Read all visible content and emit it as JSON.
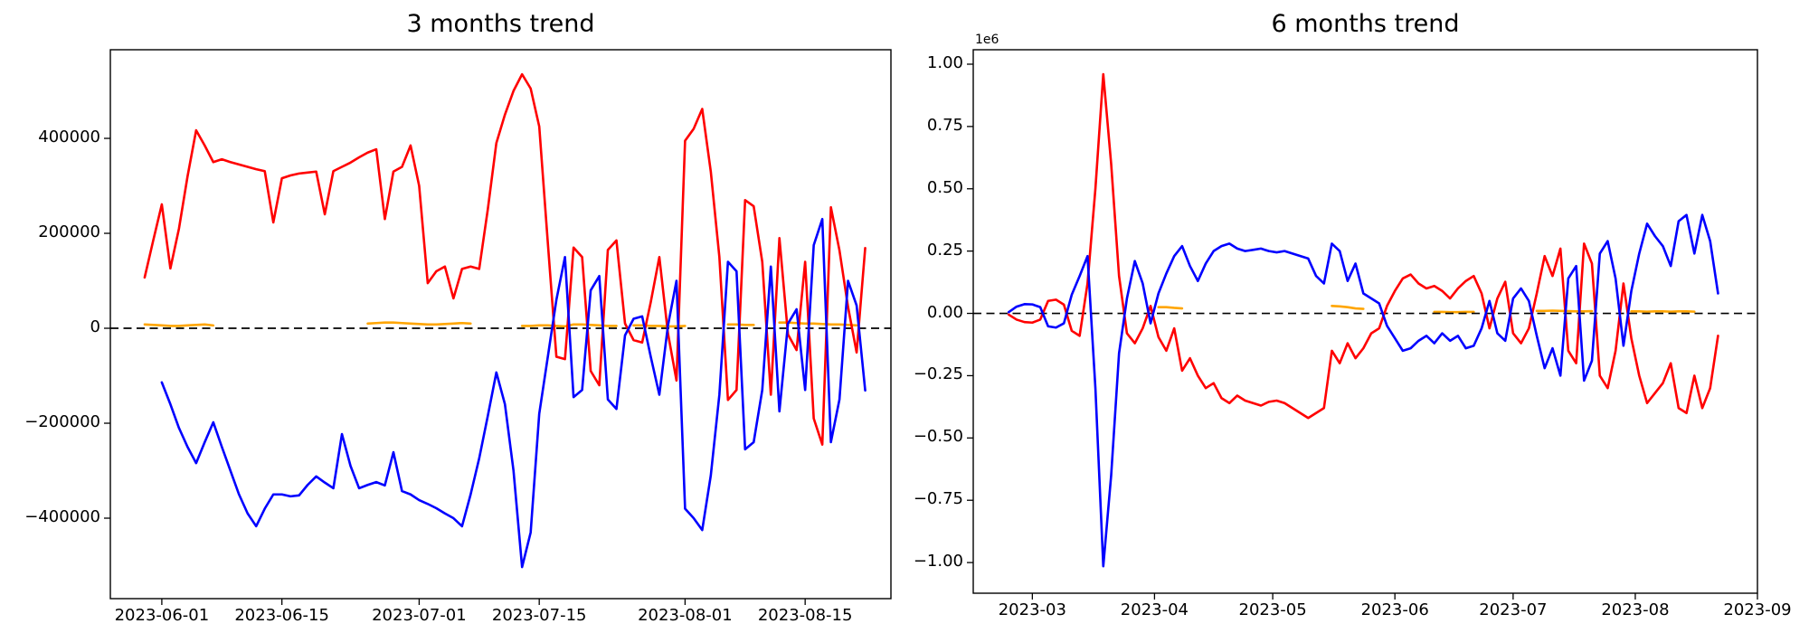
{
  "figure": {
    "background": "#ffffff",
    "zero_line_color": "#000000",
    "axes_color": "#000000",
    "red_color": "#ff0000",
    "blue_color": "#0000ff",
    "orange_color": "#ffa500"
  },
  "chart_data": [
    {
      "type": "line",
      "title": "3 months trend",
      "xlabel": "",
      "ylabel": "",
      "grid": false,
      "legend": null,
      "y_offset_label": null,
      "xlim": [
        "2023-05-26",
        "2023-08-25"
      ],
      "ylim": [
        -569500,
        586700
      ],
      "zero_line": {
        "value": 0,
        "style": "dashed",
        "color": "#000000"
      },
      "xticks": [
        "2023-06-01",
        "2023-06-15",
        "2023-07-01",
        "2023-07-15",
        "2023-08-01",
        "2023-08-15"
      ],
      "yticks": [
        {
          "value": 400000,
          "label": "400000"
        },
        {
          "value": 200000,
          "label": "200000"
        },
        {
          "value": 0,
          "label": "0"
        },
        {
          "value": -200000,
          "label": "−200000"
        },
        {
          "value": -400000,
          "label": "−400000"
        }
      ],
      "x": [
        "2023-05-30",
        "2023-05-31",
        "2023-06-01",
        "2023-06-02",
        "2023-06-03",
        "2023-06-04",
        "2023-06-05",
        "2023-06-06",
        "2023-06-07",
        "2023-06-08",
        "2023-06-09",
        "2023-06-10",
        "2023-06-11",
        "2023-06-12",
        "2023-06-13",
        "2023-06-14",
        "2023-06-15",
        "2023-06-16",
        "2023-06-17",
        "2023-06-18",
        "2023-06-19",
        "2023-06-20",
        "2023-06-21",
        "2023-06-22",
        "2023-06-23",
        "2023-06-24",
        "2023-06-25",
        "2023-06-26",
        "2023-06-27",
        "2023-06-28",
        "2023-06-29",
        "2023-06-30",
        "2023-07-01",
        "2023-07-02",
        "2023-07-03",
        "2023-07-04",
        "2023-07-05",
        "2023-07-06",
        "2023-07-07",
        "2023-07-08",
        "2023-07-09",
        "2023-07-10",
        "2023-07-11",
        "2023-07-12",
        "2023-07-13",
        "2023-07-14",
        "2023-07-15",
        "2023-07-16",
        "2023-07-17",
        "2023-07-18",
        "2023-07-19",
        "2023-07-20",
        "2023-07-21",
        "2023-07-22",
        "2023-07-23",
        "2023-07-24",
        "2023-07-25",
        "2023-07-26",
        "2023-07-27",
        "2023-07-28",
        "2023-07-29",
        "2023-07-30",
        "2023-07-31",
        "2023-08-01",
        "2023-08-02",
        "2023-08-03",
        "2023-08-04",
        "2023-08-05",
        "2023-08-06",
        "2023-08-07",
        "2023-08-08",
        "2023-08-09",
        "2023-08-10",
        "2023-08-11",
        "2023-08-12",
        "2023-08-13",
        "2023-08-14",
        "2023-08-15",
        "2023-08-16",
        "2023-08-17",
        "2023-08-18",
        "2023-08-19",
        "2023-08-20",
        "2023-08-21",
        "2023-08-22"
      ],
      "series": [
        {
          "name": "orange-series",
          "color": "#ffa500",
          "values": [
            8000,
            7000,
            6000,
            5000,
            5000,
            6000,
            7000,
            8000,
            6000,
            null,
            null,
            null,
            null,
            null,
            null,
            null,
            null,
            null,
            null,
            null,
            null,
            null,
            null,
            null,
            null,
            null,
            10000,
            11000,
            12000,
            12000,
            11000,
            10000,
            9000,
            8000,
            8000,
            9000,
            10000,
            11000,
            10000,
            null,
            null,
            null,
            null,
            null,
            5000,
            5000,
            6000,
            6000,
            5000,
            4000,
            8000,
            8000,
            7000,
            6000,
            5000,
            5000,
            null,
            6000,
            6000,
            5000,
            5000,
            4000,
            4000,
            5000,
            null,
            null,
            null,
            null,
            8000,
            8000,
            7000,
            7000,
            null,
            null,
            12000,
            12000,
            11000,
            10000,
            10000,
            9000,
            8000,
            8000,
            7000,
            6000,
            null
          ]
        },
        {
          "name": "red-series",
          "color": "#ff0000",
          "values": [
            107000,
            185000,
            261000,
            126000,
            210000,
            320000,
            417000,
            385000,
            350000,
            356000,
            350000,
            345000,
            340000,
            335000,
            331000,
            223000,
            316000,
            322000,
            326000,
            328000,
            330000,
            240000,
            331000,
            340000,
            349000,
            360000,
            370000,
            377000,
            230000,
            330000,
            340000,
            385000,
            300000,
            95000,
            120000,
            130000,
            63000,
            125000,
            130000,
            125000,
            250000,
            390000,
            450000,
            500000,
            535000,
            505000,
            425000,
            180000,
            -60000,
            -65000,
            170000,
            150000,
            -90000,
            -120000,
            165000,
            185000,
            10000,
            -25000,
            -30000,
            55000,
            150000,
            -10000,
            -110000,
            395000,
            420000,
            462000,
            330000,
            150000,
            -151000,
            -130000,
            270000,
            257000,
            140000,
            -140000,
            190000,
            -13000,
            -46000,
            140000,
            -190000,
            -245000,
            255000,
            164000,
            45000,
            -51000,
            169000
          ]
        },
        {
          "name": "blue-series",
          "color": "#0000ff",
          "values": [
            null,
            null,
            -114000,
            -160000,
            -210000,
            -250000,
            -284000,
            -240000,
            -198000,
            -250000,
            -300000,
            -350000,
            -390000,
            -417000,
            -380000,
            -350000,
            -350000,
            -354000,
            -352000,
            -330000,
            -312000,
            -325000,
            -337000,
            -223000,
            -290000,
            -337000,
            -330000,
            -324000,
            -331000,
            -261000,
            -343000,
            -350000,
            -362000,
            -370000,
            -379000,
            -390000,
            -400000,
            -417000,
            -350000,
            -274000,
            -185000,
            -93000,
            -160000,
            -300000,
            -503000,
            -430000,
            -180000,
            -60000,
            60000,
            150000,
            -145000,
            -130000,
            80000,
            110000,
            -150000,
            -170000,
            -15000,
            20000,
            25000,
            -60000,
            -140000,
            5000,
            100000,
            -380000,
            -400000,
            -425000,
            -310000,
            -140000,
            140000,
            120000,
            -255000,
            -240000,
            -130000,
            130000,
            -175000,
            10000,
            40000,
            -130000,
            175000,
            230000,
            -240000,
            -150000,
            100000,
            48000,
            -131000
          ]
        }
      ]
    },
    {
      "type": "line",
      "title": "6 months trend",
      "xlabel": "",
      "ylabel": "",
      "grid": false,
      "legend": null,
      "y_offset_label": "1e6",
      "xlim": [
        "2023-02-14",
        "2023-09-01"
      ],
      "ylim": [
        -1123000,
        1058000
      ],
      "zero_line": {
        "value": 0,
        "style": "dashed",
        "color": "#000000"
      },
      "xticks": [
        "2023-03",
        "2023-04",
        "2023-05",
        "2023-06",
        "2023-07",
        "2023-08",
        "2023-09"
      ],
      "yticks": [
        {
          "value": 1000000,
          "label": "1.00"
        },
        {
          "value": 750000,
          "label": "0.75"
        },
        {
          "value": 500000,
          "label": "0.50"
        },
        {
          "value": 250000,
          "label": "0.25"
        },
        {
          "value": 0,
          "label": "0.00"
        },
        {
          "value": -250000,
          "label": "−0.25"
        },
        {
          "value": -500000,
          "label": "−0.50"
        },
        {
          "value": -750000,
          "label": "−0.75"
        },
        {
          "value": -1000000,
          "label": "−1.00"
        }
      ],
      "x": [
        "2023-02-23",
        "2023-02-25",
        "2023-02-27",
        "2023-03-01",
        "2023-03-03",
        "2023-03-05",
        "2023-03-07",
        "2023-03-09",
        "2023-03-11",
        "2023-03-13",
        "2023-03-15",
        "2023-03-17",
        "2023-03-19",
        "2023-03-21",
        "2023-03-23",
        "2023-03-25",
        "2023-03-27",
        "2023-03-29",
        "2023-03-31",
        "2023-04-02",
        "2023-04-04",
        "2023-04-06",
        "2023-04-08",
        "2023-04-10",
        "2023-04-12",
        "2023-04-14",
        "2023-04-16",
        "2023-04-18",
        "2023-04-20",
        "2023-04-22",
        "2023-04-24",
        "2023-04-26",
        "2023-04-28",
        "2023-04-30",
        "2023-05-02",
        "2023-05-04",
        "2023-05-06",
        "2023-05-08",
        "2023-05-10",
        "2023-05-12",
        "2023-05-14",
        "2023-05-16",
        "2023-05-18",
        "2023-05-20",
        "2023-05-22",
        "2023-05-24",
        "2023-05-26",
        "2023-05-28",
        "2023-05-30",
        "2023-06-01",
        "2023-06-03",
        "2023-06-05",
        "2023-06-07",
        "2023-06-09",
        "2023-06-11",
        "2023-06-13",
        "2023-06-15",
        "2023-06-17",
        "2023-06-19",
        "2023-06-21",
        "2023-06-23",
        "2023-06-25",
        "2023-06-27",
        "2023-06-29",
        "2023-07-01",
        "2023-07-03",
        "2023-07-05",
        "2023-07-07",
        "2023-07-09",
        "2023-07-11",
        "2023-07-13",
        "2023-07-15",
        "2023-07-17",
        "2023-07-19",
        "2023-07-21",
        "2023-07-23",
        "2023-07-25",
        "2023-07-27",
        "2023-07-29",
        "2023-07-31",
        "2023-08-02",
        "2023-08-04",
        "2023-08-06",
        "2023-08-08",
        "2023-08-10",
        "2023-08-12",
        "2023-08-14",
        "2023-08-16",
        "2023-08-18",
        "2023-08-20",
        "2023-08-22"
      ],
      "series": [
        {
          "name": "orange-series",
          "color": "#ffa500",
          "values": [
            null,
            null,
            null,
            null,
            null,
            null,
            null,
            null,
            null,
            null,
            null,
            null,
            null,
            null,
            null,
            null,
            null,
            null,
            null,
            25000,
            25000,
            22000,
            20000,
            null,
            null,
            null,
            null,
            null,
            null,
            null,
            null,
            null,
            null,
            null,
            null,
            null,
            null,
            null,
            null,
            null,
            null,
            30000,
            28000,
            25000,
            20000,
            18000,
            null,
            null,
            null,
            null,
            null,
            null,
            null,
            null,
            6000,
            6000,
            5000,
            5000,
            6000,
            6000,
            null,
            null,
            null,
            null,
            null,
            null,
            null,
            10000,
            10000,
            11000,
            10000,
            9000,
            8000,
            8000,
            9000,
            null,
            null,
            null,
            null,
            8000,
            8000,
            7000,
            8000,
            8000,
            7000,
            8000,
            8000,
            7000,
            null,
            null,
            null
          ]
        },
        {
          "name": "red-series",
          "color": "#ff0000",
          "values": [
            -5000,
            -25000,
            -35000,
            -37000,
            -25000,
            50000,
            55000,
            35000,
            -70000,
            -90000,
            120000,
            500000,
            960000,
            600000,
            150000,
            -80000,
            -120000,
            -60000,
            30000,
            -95000,
            -150000,
            -60000,
            -230000,
            -180000,
            -250000,
            -300000,
            -280000,
            -340000,
            -360000,
            -330000,
            -350000,
            -360000,
            -370000,
            -355000,
            -350000,
            -360000,
            -380000,
            -400000,
            -420000,
            -400000,
            -380000,
            -150000,
            -200000,
            -120000,
            -180000,
            -140000,
            -80000,
            -60000,
            30000,
            90000,
            140000,
            156000,
            120000,
            100000,
            110000,
            90000,
            60000,
            100000,
            130000,
            150000,
            80000,
            -60000,
            60000,
            127000,
            -80000,
            -120000,
            -60000,
            80000,
            230000,
            150000,
            260000,
            -150000,
            -200000,
            280000,
            200000,
            -250000,
            -300000,
            -150000,
            120000,
            -100000,
            -250000,
            -360000,
            -320000,
            -280000,
            -200000,
            -380000,
            -400000,
            -250000,
            -380000,
            -300000,
            -90000
          ]
        },
        {
          "name": "blue-series",
          "color": "#0000ff",
          "values": [
            5000,
            27000,
            37000,
            36000,
            25000,
            -52000,
            -57000,
            -40000,
            75000,
            150000,
            230000,
            -300000,
            -1015000,
            -650000,
            -160000,
            60000,
            210000,
            120000,
            -40000,
            80000,
            160000,
            230000,
            270000,
            190000,
            130000,
            200000,
            250000,
            270000,
            280000,
            260000,
            250000,
            255000,
            260000,
            250000,
            245000,
            250000,
            240000,
            230000,
            220000,
            150000,
            120000,
            280000,
            250000,
            130000,
            200000,
            80000,
            60000,
            40000,
            -50000,
            -100000,
            -150000,
            -140000,
            -110000,
            -90000,
            -120000,
            -80000,
            -110000,
            -90000,
            -140000,
            -130000,
            -60000,
            50000,
            -80000,
            -110000,
            60000,
            100000,
            50000,
            -90000,
            -220000,
            -140000,
            -250000,
            140000,
            190000,
            -270000,
            -190000,
            240000,
            290000,
            140000,
            -130000,
            90000,
            240000,
            360000,
            310000,
            270000,
            190000,
            370000,
            395000,
            240000,
            395000,
            290000,
            80000
          ]
        }
      ]
    }
  ]
}
